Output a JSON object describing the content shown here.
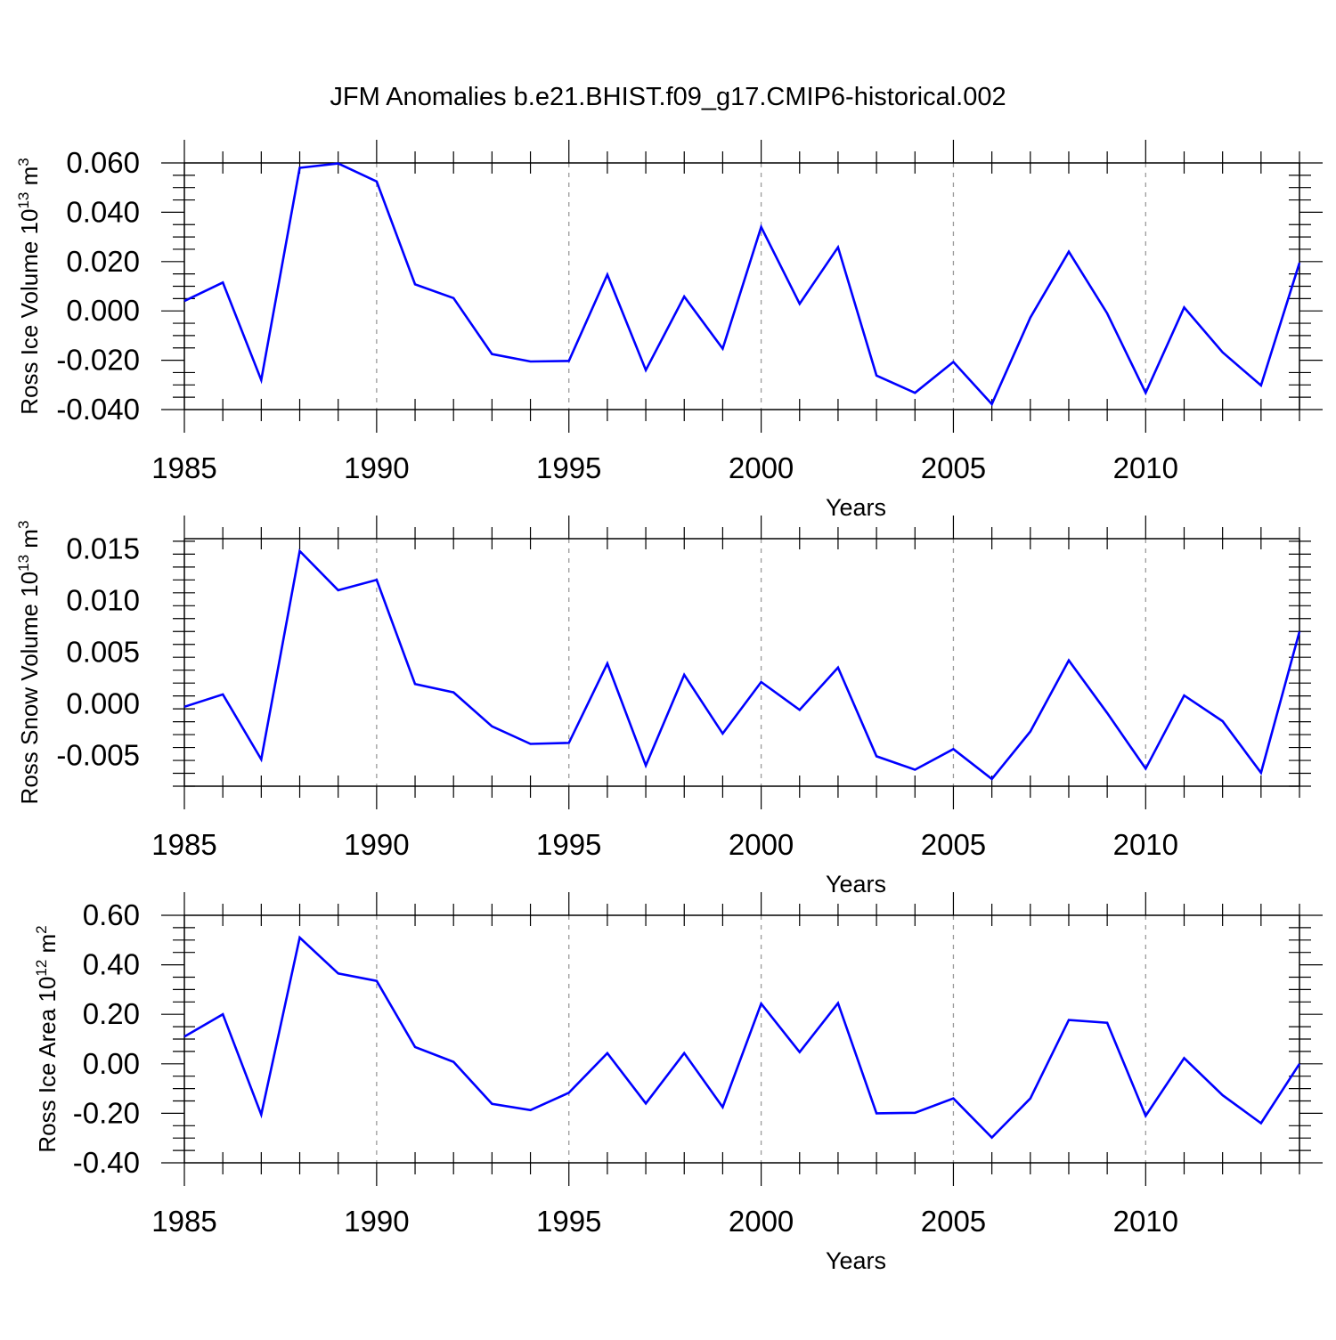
{
  "title": "JFM Anomalies b.e21.BHIST.f09_g17.CMIP6-historical.002",
  "colors": {
    "line": "#0000ff",
    "axis": "#000000",
    "grid": "#9a9a9a",
    "background": "#ffffff"
  },
  "chart_data": [
    {
      "type": "line",
      "ylabel_main": "Ross Ice Volume 10",
      "ylabel_exp": "13",
      "ylabel_unit": " m",
      "ylabel_unit_exp": "3",
      "xlabel": "Years",
      "xlim": [
        1985,
        2014
      ],
      "ylim": [
        -0.04,
        0.06
      ],
      "x_ticks": [
        1985,
        1990,
        1995,
        2000,
        2005,
        2010
      ],
      "x_tick_labels": [
        "1985",
        "1990",
        "1995",
        "2000",
        "2005",
        "2010"
      ],
      "y_ticks": [
        -0.04,
        -0.02,
        0.0,
        0.02,
        0.04,
        0.06
      ],
      "y_tick_labels": [
        "-0.040",
        "-0.020",
        "0.000",
        "0.020",
        "0.040",
        "0.060"
      ],
      "grid": "vertical dashed at major x ticks",
      "series": [
        {
          "name": "Ross Ice Volume",
          "x": [
            1985,
            1986,
            1987,
            1988,
            1989,
            1990,
            1991,
            1992,
            1993,
            1994,
            1995,
            1996,
            1997,
            1998,
            1999,
            2000,
            2001,
            2002,
            2003,
            2004,
            2005,
            2006,
            2007,
            2008,
            2009,
            2010,
            2011,
            2012,
            2013,
            2014
          ],
          "values": [
            0.004,
            0.0115,
            -0.028,
            0.058,
            0.0598,
            0.0525,
            0.0108,
            0.0052,
            -0.0175,
            -0.0205,
            -0.0203,
            0.0147,
            -0.024,
            0.0058,
            -0.0153,
            0.034,
            0.0029,
            0.0258,
            -0.0262,
            -0.0332,
            -0.0207,
            -0.0378,
            -0.0027,
            0.024,
            -0.001,
            -0.0332,
            0.0014,
            -0.0168,
            -0.0302,
            0.0195
          ]
        }
      ]
    },
    {
      "type": "line",
      "ylabel_main": "Ross Snow Volume 10",
      "ylabel_exp": "13",
      "ylabel_unit": " m",
      "ylabel_unit_exp": "3",
      "xlabel": "Years",
      "xlim": [
        1985,
        2014
      ],
      "ylim": [
        -0.008,
        0.016
      ],
      "x_ticks": [
        1985,
        1990,
        1995,
        2000,
        2005,
        2010
      ],
      "x_tick_labels": [
        "1985",
        "1990",
        "1995",
        "2000",
        "2005",
        "2010"
      ],
      "y_ticks": [
        -0.005,
        0.0,
        0.005,
        0.01,
        0.015
      ],
      "y_tick_labels": [
        "-0.005",
        "0.000",
        "0.005",
        "0.010",
        "0.015"
      ],
      "grid": "vertical dashed at major x ticks",
      "series": [
        {
          "name": "Ross Snow Volume",
          "x": [
            1985,
            1986,
            1987,
            1988,
            1989,
            1990,
            1991,
            1992,
            1993,
            1994,
            1995,
            1996,
            1997,
            1998,
            1999,
            2000,
            2001,
            2002,
            2003,
            2004,
            2005,
            2006,
            2007,
            2008,
            2009,
            2010,
            2011,
            2012,
            2013,
            2014
          ],
          "values": [
            -0.0003,
            0.0009,
            -0.0054,
            0.0148,
            0.011,
            0.012,
            0.0019,
            0.0011,
            -0.0022,
            -0.0039,
            -0.0038,
            0.0039,
            -0.006,
            0.0028,
            -0.0029,
            0.0021,
            -0.0006,
            0.0035,
            -0.0051,
            -0.0064,
            -0.0044,
            -0.0073,
            -0.0027,
            0.0042,
            -0.0009,
            -0.0063,
            0.0008,
            -0.0017,
            -0.0067,
            0.007
          ]
        }
      ]
    },
    {
      "type": "line",
      "ylabel_main": "Ross Ice Area 10",
      "ylabel_exp": "12",
      "ylabel_unit": " m",
      "ylabel_unit_exp": "2",
      "xlabel": "Years",
      "xlim": [
        1985,
        2014
      ],
      "ylim": [
        -0.4,
        0.6
      ],
      "x_ticks": [
        1985,
        1990,
        1995,
        2000,
        2005,
        2010
      ],
      "x_tick_labels": [
        "1985",
        "1990",
        "1995",
        "2000",
        "2005",
        "2010"
      ],
      "y_ticks": [
        -0.4,
        -0.2,
        0.0,
        0.2,
        0.4,
        0.6
      ],
      "y_tick_labels": [
        "-0.40",
        "-0.20",
        "0.00",
        "0.20",
        "0.40",
        "0.60"
      ],
      "grid": "vertical dashed at major x ticks",
      "series": [
        {
          "name": "Ross Ice Area",
          "x": [
            1985,
            1986,
            1987,
            1988,
            1989,
            1990,
            1991,
            1992,
            1993,
            1994,
            1995,
            1996,
            1997,
            1998,
            1999,
            2000,
            2001,
            2002,
            2003,
            2004,
            2005,
            2006,
            2007,
            2008,
            2009,
            2010,
            2011,
            2012,
            2013,
            2014
          ],
          "values": [
            0.11,
            0.2,
            -0.205,
            0.51,
            0.365,
            0.335,
            0.068,
            0.008,
            -0.162,
            -0.187,
            -0.117,
            0.043,
            -0.16,
            0.043,
            -0.175,
            0.243,
            0.047,
            0.245,
            -0.2,
            -0.198,
            -0.14,
            -0.298,
            -0.14,
            0.177,
            0.166,
            -0.21,
            0.023,
            -0.127,
            -0.24,
            0.0
          ]
        }
      ]
    }
  ]
}
